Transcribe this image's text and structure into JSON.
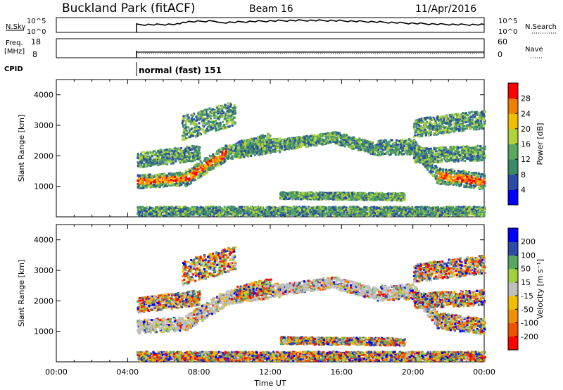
{
  "header": {
    "title": "Buckland Park (fitACF)",
    "beam": "Beam 16",
    "date": "11/Apr/2016"
  },
  "side_labels": {
    "nsky": "N.Sky",
    "nsearch": "N.Search",
    "freq": "Freq.",
    "freq_unit": "[MHz]",
    "nave": "Nave",
    "cpid": "CPID"
  },
  "cpid_text": "normal (fast) 151",
  "colors": {
    "line": "#000000",
    "grid": "#000000",
    "ground_scatter": "#c0c0c0"
  },
  "chart_data": [
    {
      "type": "line",
      "name": "noise",
      "ylim_labels": [
        "10^0",
        "10^5"
      ],
      "right_labels": [
        "10^0",
        "10^5"
      ],
      "xlim": [
        "00:00",
        "24:00"
      ],
      "data_start": "04:30"
    },
    {
      "type": "line",
      "name": "frequency",
      "left_ticks": [
        8,
        18
      ],
      "right_ticks": [
        0,
        60
      ]
    },
    {
      "type": "heatmap",
      "name": "power",
      "xlabel": "",
      "ylabel": "Slant Range [km]",
      "y_ticks": [
        1000,
        2000,
        3000,
        4000
      ],
      "ylim": [
        0,
        4500
      ],
      "x_ticks": [
        "00:00",
        "04:00",
        "08:00",
        "12:00",
        "16:00",
        "20:00",
        "00:00"
      ],
      "colorbar_label": "Power [dB]",
      "colorbar_ticks": [
        4,
        8,
        12,
        16,
        20,
        24,
        28
      ],
      "colorbar_colors": [
        "#0000ff",
        "#2b4da8",
        "#3c8a6a",
        "#58a862",
        "#b0d23a",
        "#f0c000",
        "#f08000",
        "#ff0000"
      ]
    },
    {
      "type": "heatmap",
      "name": "velocity",
      "xlabel": "Time UT",
      "ylabel": "Slant Range [km]",
      "y_ticks": [
        1000,
        2000,
        3000,
        4000
      ],
      "ylim": [
        0,
        4500
      ],
      "x_ticks": [
        "00:00",
        "04:00",
        "08:00",
        "12:00",
        "16:00",
        "20:00",
        "00:00"
      ],
      "colorbar_label": "Velocity [m s⁻¹]",
      "colorbar_ticks": [
        -200,
        -100,
        -50,
        -15,
        15,
        50,
        100,
        200
      ],
      "colorbar_colors": [
        "#ff0000",
        "#f05000",
        "#f09000",
        "#f0c000",
        "#c0c0c0",
        "#a0d040",
        "#58a862",
        "#2b4da8",
        "#0000ff"
      ]
    }
  ]
}
